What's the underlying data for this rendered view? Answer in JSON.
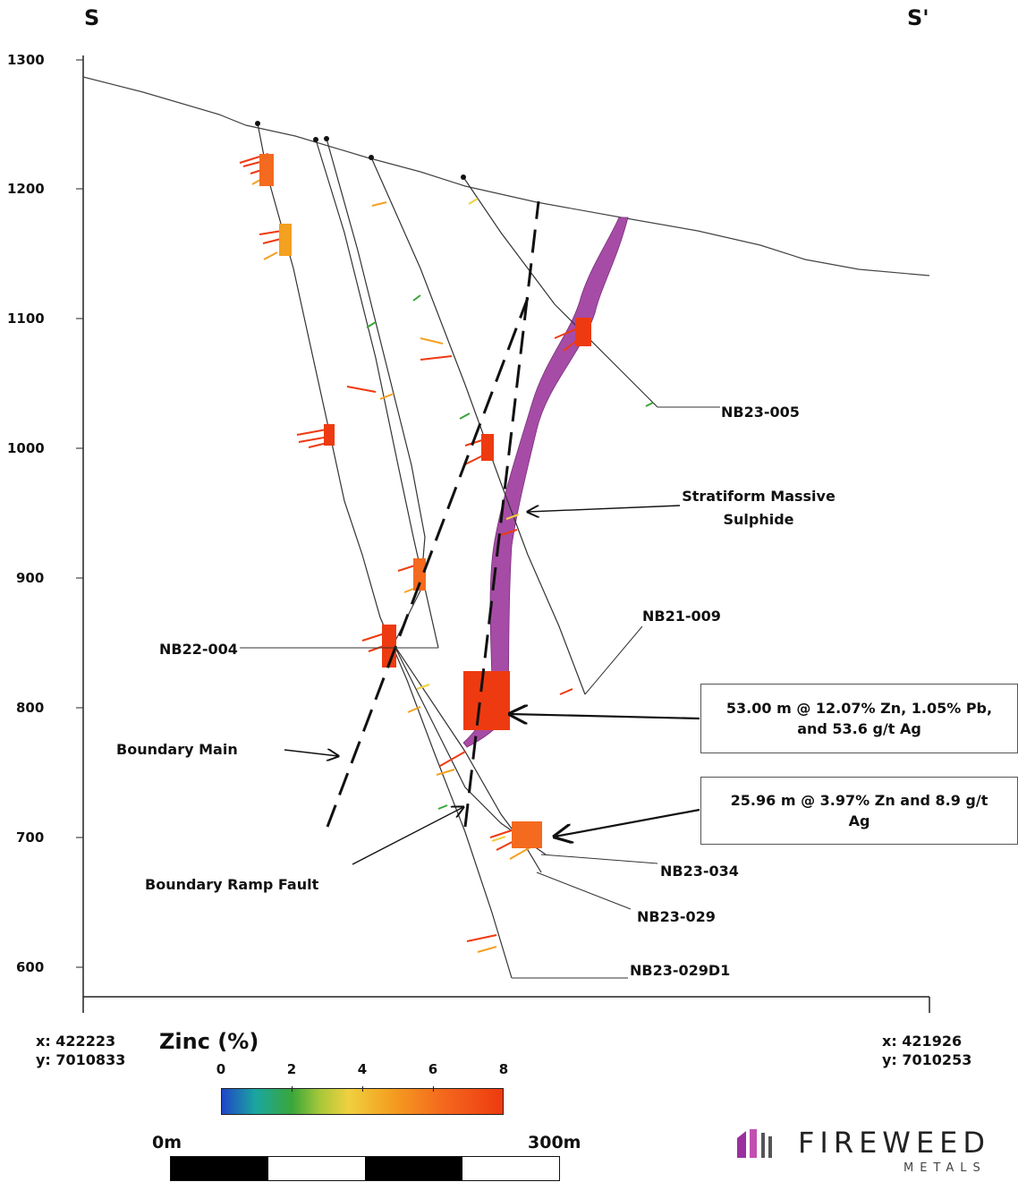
{
  "section_labels": {
    "start": "S",
    "end": "S'"
  },
  "elevation_ticks": [
    "1300",
    "1200",
    "1100",
    "1000",
    "900",
    "800",
    "700",
    "600"
  ],
  "drillholes": [
    {
      "id": "NB23-005"
    },
    {
      "id": "NB21-009"
    },
    {
      "id": "NB22-004"
    },
    {
      "id": "NB23-034"
    },
    {
      "id": "NB23-029"
    },
    {
      "id": "NB23-029D1"
    }
  ],
  "features": {
    "massive_sulphide_line1": "Stratiform Massive",
    "massive_sulphide_line2": "Sulphide",
    "boundary_main": "Boundary Main",
    "boundary_ramp_fault": "Boundary Ramp Fault"
  },
  "callouts": [
    {
      "line1": "53.00 m @ 12.07% Zn, 1.05% Pb,",
      "line2": "and 53.6 g/t Ag"
    },
    {
      "line1": "25.96 m @ 3.97% Zn and 8.9 g/t",
      "line2": "Ag"
    }
  ],
  "coordinates": {
    "left": {
      "x": "x: 422223",
      "y": "y: 7010833"
    },
    "right": {
      "x": "x: 421926",
      "y": "y: 7010253"
    }
  },
  "legend": {
    "title": "Zinc (%)",
    "ticks": [
      "0",
      "2",
      "4",
      "6",
      "8"
    ],
    "range": [
      0,
      8
    ],
    "colors": [
      "#2046c8",
      "#3aa63a",
      "#f0d040",
      "#f4a020",
      "#ee3a10"
    ]
  },
  "scale_bar": {
    "start_label": "0m",
    "end_label": "300m"
  },
  "logo": {
    "word": "FIREWEED",
    "sub": "METALS",
    "accent": "#9b2fa0"
  },
  "colors": {
    "massive_sulphide": "#a64ca6",
    "high_grade": "#ee3a10"
  }
}
